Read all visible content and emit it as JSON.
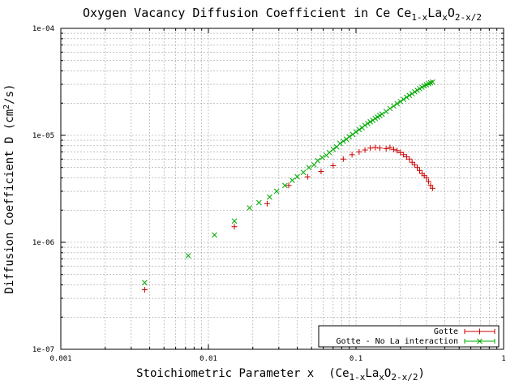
{
  "chart_data": {
    "type": "scatter",
    "title": "Oxygen Vacancy Diffusion Coefficient in Ce",
    "title_formula": [
      {
        "text": "Ce",
        "sub": false
      },
      {
        "text": "1-x",
        "sub": true
      },
      {
        "text": "La",
        "sub": false
      },
      {
        "text": "x",
        "sub": true
      },
      {
        "text": "O",
        "sub": false
      },
      {
        "text": "2-x/2",
        "sub": true
      }
    ],
    "xlabel": "Stoichiometric Parameter x",
    "xlabel_formula": [
      {
        "text": "(Ce",
        "sub": false
      },
      {
        "text": "1-x",
        "sub": true
      },
      {
        "text": "La",
        "sub": false
      },
      {
        "text": "x",
        "sub": true
      },
      {
        "text": "O",
        "sub": false
      },
      {
        "text": "2-x/2",
        "sub": true
      },
      {
        "text": ")",
        "sub": false
      }
    ],
    "ylabel_parts": [
      {
        "text": "Diffusion Coefficient D (cm",
        "sup": false
      },
      {
        "text": "2",
        "sup": true
      },
      {
        "text": "/s)",
        "sup": false
      }
    ],
    "xscale": "log",
    "yscale": "log",
    "xlim": [
      0.001,
      1
    ],
    "ylim": [
      1e-07,
      0.0001
    ],
    "xticks": [
      {
        "value": 0.001,
        "label": "0.001"
      },
      {
        "value": 0.01,
        "label": "0.01"
      },
      {
        "value": 0.1,
        "label": "0.1"
      },
      {
        "value": 1,
        "label": "1"
      }
    ],
    "yticks": [
      {
        "value": 1e-07,
        "label": "1e-07"
      },
      {
        "value": 1e-06,
        "label": "1e-06"
      },
      {
        "value": 1e-05,
        "label": "1e-05"
      },
      {
        "value": 0.0001,
        "label": "1e-04"
      }
    ],
    "grid": true,
    "legend_position": "bottom-right",
    "series": [
      {
        "name": "Gotte",
        "marker": "plus",
        "color": "#cc0000",
        "x": [
          0.0037,
          0.015,
          0.025,
          0.035,
          0.047,
          0.058,
          0.07,
          0.082,
          0.094,
          0.105,
          0.115,
          0.125,
          0.135,
          0.145,
          0.16,
          0.17,
          0.18,
          0.19,
          0.2,
          0.21,
          0.22,
          0.23,
          0.24,
          0.25,
          0.26,
          0.27,
          0.28,
          0.29,
          0.3,
          0.31,
          0.32,
          0.33
        ],
        "y": [
          3.6e-07,
          1.4e-06,
          2.3e-06,
          3.4e-06,
          4.1e-06,
          4.6e-06,
          5.2e-06,
          6e-06,
          6.6e-06,
          7e-06,
          7.3e-06,
          7.6e-06,
          7.7e-06,
          7.6e-06,
          7.5e-06,
          7.7e-06,
          7.4e-06,
          7.2e-06,
          6.9e-06,
          6.6e-06,
          6.3e-06,
          6e-06,
          5.6e-06,
          5.3e-06,
          5e-06,
          4.7e-06,
          4.4e-06,
          4.2e-06,
          4e-06,
          3.7e-06,
          3.4e-06,
          3.2e-06
        ]
      },
      {
        "name": "Gotte - No La interaction",
        "marker": "cross",
        "color": "#00aa00",
        "x": [
          0.0037,
          0.0073,
          0.011,
          0.015,
          0.019,
          0.022,
          0.026,
          0.029,
          0.033,
          0.037,
          0.04,
          0.044,
          0.048,
          0.052,
          0.055,
          0.059,
          0.063,
          0.066,
          0.07,
          0.074,
          0.078,
          0.082,
          0.086,
          0.09,
          0.095,
          0.1,
          0.105,
          0.11,
          0.115,
          0.12,
          0.125,
          0.13,
          0.135,
          0.14,
          0.145,
          0.15,
          0.16,
          0.17,
          0.18,
          0.19,
          0.2,
          0.21,
          0.22,
          0.23,
          0.24,
          0.25,
          0.26,
          0.27,
          0.28,
          0.29,
          0.3,
          0.31,
          0.32,
          0.33
        ],
        "y": [
          4.2e-07,
          7.5e-07,
          1.17e-06,
          1.58e-06,
          2.1e-06,
          2.35e-06,
          2.65e-06,
          3e-06,
          3.4e-06,
          3.8e-06,
          4.1e-06,
          4.5e-06,
          5e-06,
          5.3e-06,
          5.8e-06,
          6.2e-06,
          6.5e-06,
          6.9e-06,
          7.4e-06,
          7.8e-06,
          8.4e-06,
          8.8e-06,
          9.2e-06,
          9.7e-06,
          1.02e-05,
          1.08e-05,
          1.13e-05,
          1.18e-05,
          1.24e-05,
          1.29e-05,
          1.34e-05,
          1.38e-05,
          1.44e-05,
          1.48e-05,
          1.53e-05,
          1.58e-05,
          1.67e-05,
          1.78e-05,
          1.88e-05,
          1.98e-05,
          2.07e-05,
          2.17e-05,
          2.27e-05,
          2.36e-05,
          2.45e-05,
          2.55e-05,
          2.64e-05,
          2.73e-05,
          2.82e-05,
          2.9e-05,
          2.97e-05,
          3.04e-05,
          3.1e-05,
          3.15e-05
        ]
      }
    ]
  }
}
